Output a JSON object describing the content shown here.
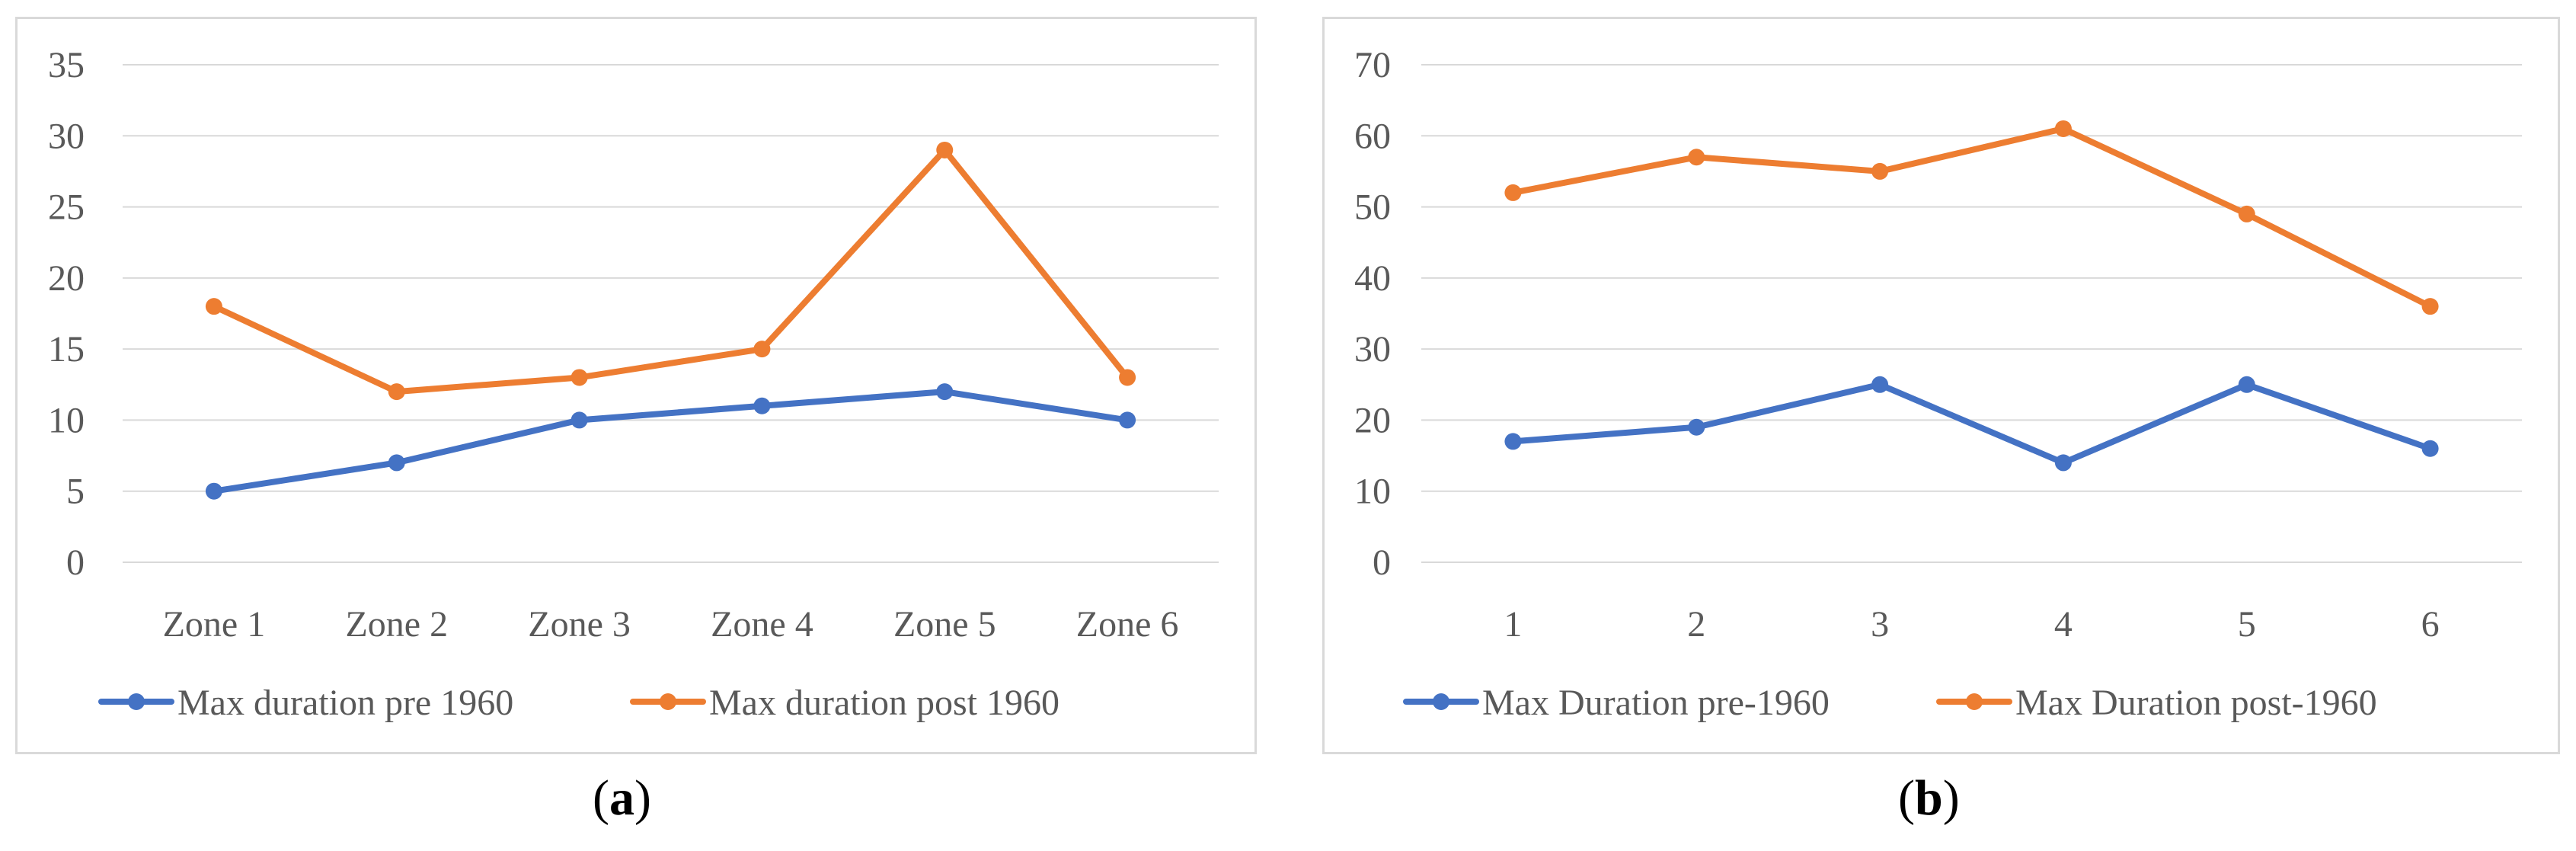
{
  "chart_data": [
    {
      "type": "line",
      "panel_label": "a",
      "categories": [
        "Zone 1",
        "Zone 2",
        "Zone 3",
        "Zone 4",
        "Zone 5",
        "Zone 6"
      ],
      "series": [
        {
          "name": "Max duration pre 1960",
          "values": [
            5,
            7,
            10,
            11,
            12,
            10
          ],
          "color": "#4472c4"
        },
        {
          "name": "Max duration post 1960",
          "values": [
            18,
            12,
            13,
            15,
            29,
            13
          ],
          "color": "#ed7d31"
        }
      ],
      "ylim": [
        0,
        35
      ],
      "yticks": [
        0,
        5,
        10,
        15,
        20,
        25,
        30,
        35
      ],
      "grid": true,
      "legend": "bottom",
      "title": "",
      "xlabel": "",
      "ylabel": ""
    },
    {
      "type": "line",
      "panel_label": "b",
      "categories": [
        "1",
        "2",
        "3",
        "4",
        "5",
        "6"
      ],
      "series": [
        {
          "name": "Max Duration pre-1960",
          "values": [
            17,
            19,
            25,
            14,
            25,
            16
          ],
          "color": "#4472c4"
        },
        {
          "name": "Max Duration post-1960",
          "values": [
            52,
            57,
            55,
            61,
            49,
            36
          ],
          "color": "#ed7d31"
        }
      ],
      "ylim": [
        0,
        70
      ],
      "yticks": [
        0,
        10,
        20,
        30,
        40,
        50,
        60,
        70
      ],
      "grid": true,
      "legend": "bottom",
      "title": "",
      "xlabel": "",
      "ylabel": ""
    }
  ]
}
